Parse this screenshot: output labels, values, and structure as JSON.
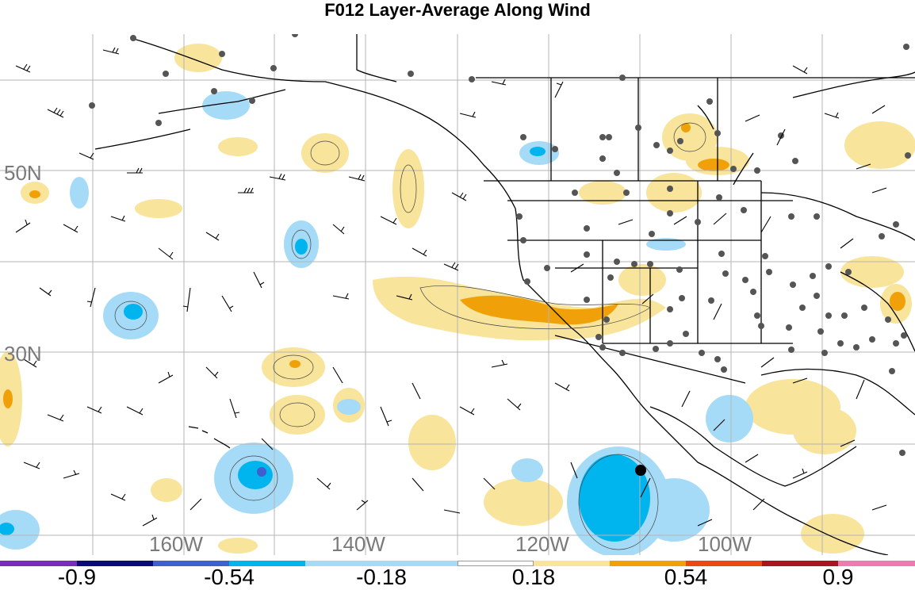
{
  "title": "F012 Layer-Average Along Wind",
  "lat_labels": [
    "50N",
    "30N"
  ],
  "lon_labels": [
    "160W",
    "140W",
    "120W",
    "100W"
  ],
  "colorbar": {
    "ticks": [
      "-0.9",
      "-0.54",
      "-0.18",
      "0.18",
      "0.54",
      "0.9"
    ],
    "colors": [
      "#7b2bbf",
      "#0a0a7a",
      "#3d5fcf",
      "#00b4ee",
      "#a6dbf7",
      "#ffffff",
      "#f8e49a",
      "#f0a10a",
      "#e84a10",
      "#a8161c",
      "#ee7ab0"
    ]
  },
  "colors": {
    "light_yellow": "#f8e49a",
    "orange": "#f0a10a",
    "dark_orange": "#e8700a",
    "light_blue": "#a6dbf7",
    "blue": "#00b4ee",
    "dark_blue": "#3d5fcf",
    "stations": "#555555",
    "grid": "#b5b5b5"
  }
}
